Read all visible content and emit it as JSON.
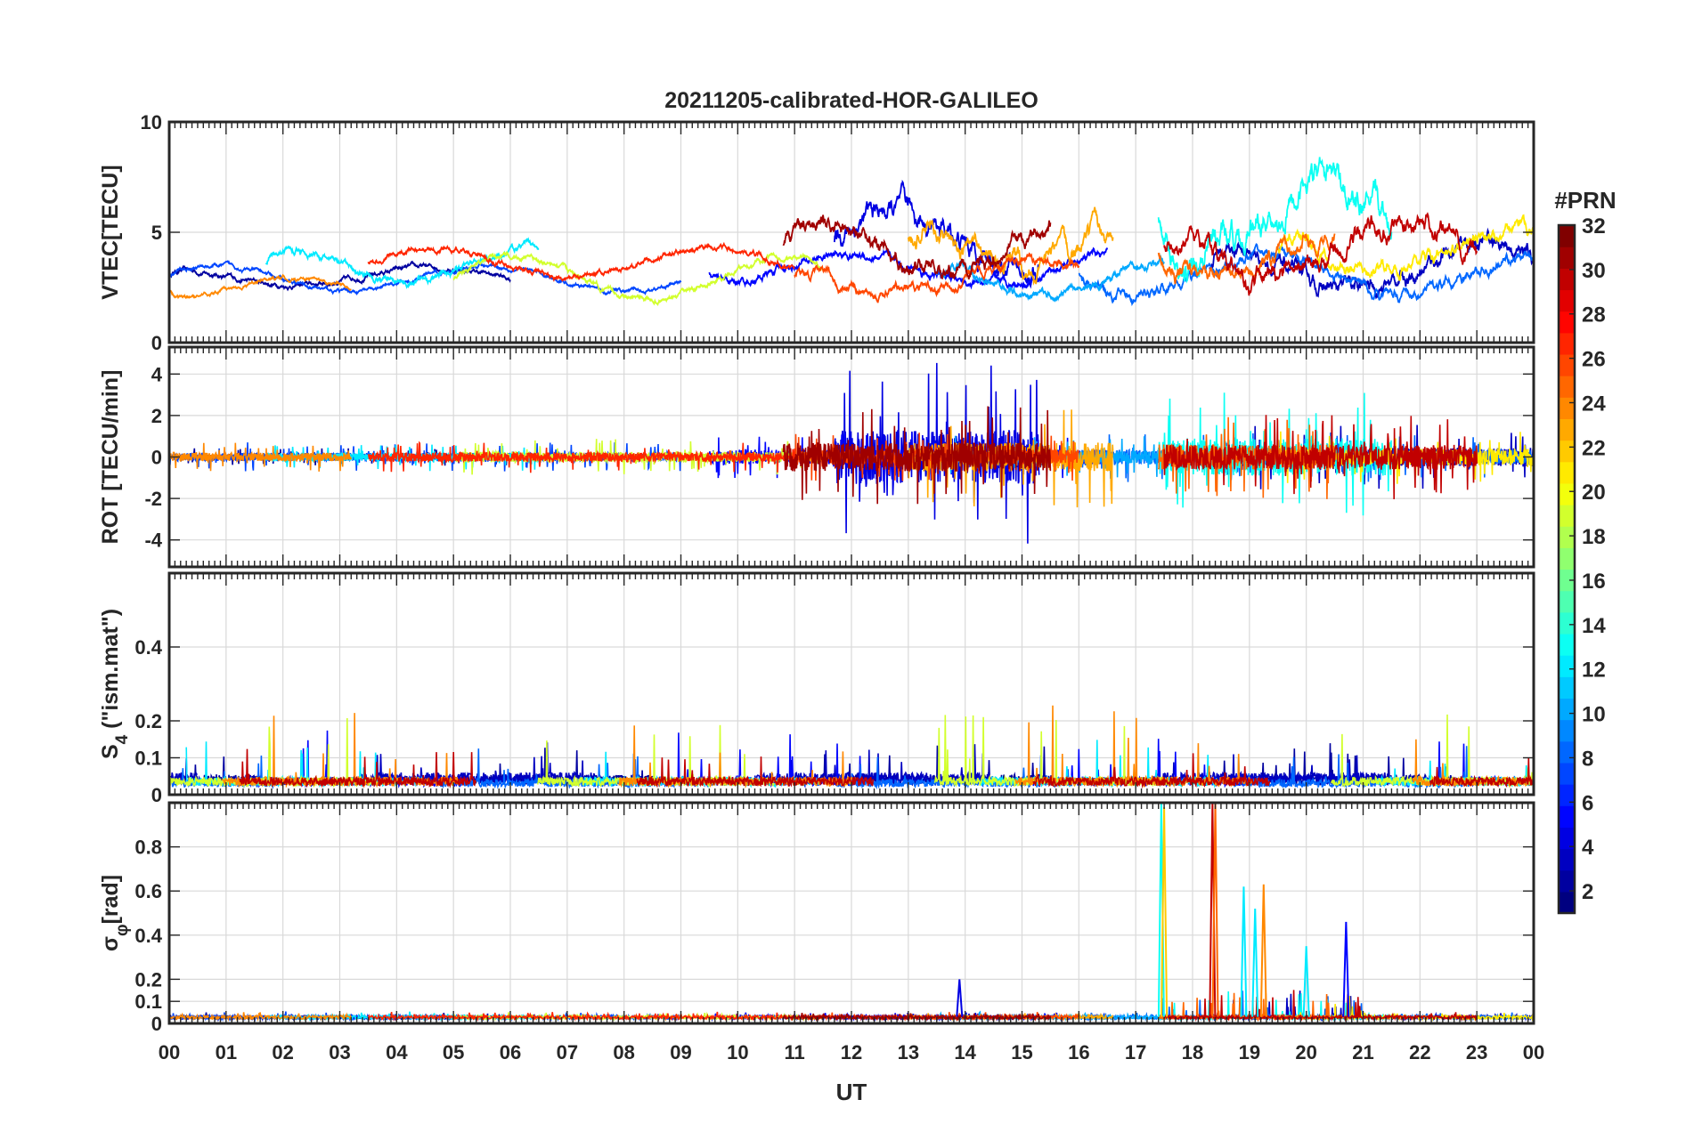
{
  "chart_data": {
    "type": "line",
    "title": "20211205-calibrated-HOR-GALILEO",
    "xlabel": "UT",
    "x_ticks": [
      "00",
      "01",
      "02",
      "03",
      "04",
      "05",
      "06",
      "07",
      "08",
      "09",
      "10",
      "11",
      "12",
      "13",
      "14",
      "15",
      "16",
      "17",
      "18",
      "19",
      "20",
      "21",
      "22",
      "23",
      "00"
    ],
    "xlim": [
      0,
      24
    ],
    "grid": true,
    "colorbar": {
      "label": "#PRN",
      "colormap": "jet",
      "range": [
        1,
        32
      ],
      "ticks": [
        "2",
        "4",
        "6",
        "8",
        "10",
        "12",
        "14",
        "16",
        "18",
        "20",
        "22",
        "24",
        "26",
        "28",
        "30",
        "32"
      ]
    },
    "panels": [
      {
        "ylabel": "VTEC[TECU]",
        "ylim": [
          0,
          10
        ],
        "yticks": [
          0,
          5,
          10
        ],
        "ytick_labels": [
          "0",
          "5",
          "10"
        ],
        "series": [
          {
            "name": "PRN 2",
            "prn": 2,
            "start": 0.0,
            "end": 6.0,
            "base": 3.0,
            "amp": 0.4,
            "noise": 0.18,
            "rot": 0.12
          },
          {
            "name": "PRN 3",
            "prn": 3,
            "start": 18.3,
            "end": 24.0,
            "base": 3.4,
            "amp": 1.1,
            "noise": 0.6,
            "rot": 0.45
          },
          {
            "name": "PRN 4",
            "prn": 4,
            "start": 11.7,
            "end": 15.3,
            "base": 4.6,
            "amp": 1.3,
            "noise": 0.8,
            "rot": 1.3
          },
          {
            "name": "PRN 5",
            "prn": 5,
            "start": 9.5,
            "end": 16.5,
            "base": 3.3,
            "amp": 0.7,
            "noise": 0.3,
            "rot": 0.35
          },
          {
            "name": "PRN 7",
            "prn": 7,
            "start": 0.0,
            "end": 9.0,
            "base": 2.9,
            "amp": 0.6,
            "noise": 0.15,
            "rot": 0.2
          },
          {
            "name": "PRN 8",
            "prn": 8,
            "start": 16.0,
            "end": 24.0,
            "base": 3.1,
            "amp": 0.9,
            "noise": 0.4,
            "rot": 0.35
          },
          {
            "name": "PRN 10",
            "prn": 10,
            "start": 13.5,
            "end": 17.5,
            "base": 3.0,
            "amp": 0.8,
            "noise": 0.3,
            "rot": 0.3
          },
          {
            "name": "PRN 12",
            "prn": 12,
            "start": 1.7,
            "end": 6.5,
            "base": 3.6,
            "amp": 0.8,
            "noise": 0.25,
            "rot": 0.2
          },
          {
            "name": "PRN 13",
            "prn": 13,
            "start": 17.4,
            "end": 21.5,
            "base": 5.5,
            "amp": 1.8,
            "noise": 1.0,
            "rot": 0.9
          },
          {
            "name": "PRN 19",
            "prn": 19,
            "start": 5.0,
            "end": 11.5,
            "base": 2.9,
            "amp": 1.0,
            "noise": 0.2,
            "rot": 0.25
          },
          {
            "name": "PRN 21",
            "prn": 21,
            "start": 19.5,
            "end": 24.0,
            "base": 4.2,
            "amp": 0.9,
            "noise": 0.5,
            "rot": 0.4
          },
          {
            "name": "PRN 23",
            "prn": 23,
            "start": 13.0,
            "end": 16.6,
            "base": 4.6,
            "amp": 1.2,
            "noise": 0.7,
            "rot": 0.7
          },
          {
            "name": "PRN 24",
            "prn": 24,
            "start": 0.0,
            "end": 3.2,
            "base": 2.4,
            "amp": 0.5,
            "noise": 0.15,
            "rot": 0.2
          },
          {
            "name": "PRN 25",
            "prn": 25,
            "start": 17.4,
            "end": 20.5,
            "base": 4.0,
            "amp": 1.0,
            "noise": 0.6,
            "rot": 0.6
          },
          {
            "name": "PRN 26",
            "prn": 26,
            "start": 11.0,
            "end": 16.0,
            "base": 3.0,
            "amp": 0.7,
            "noise": 0.35,
            "rot": 0.35
          },
          {
            "name": "PRN 27",
            "prn": 27,
            "start": 3.5,
            "end": 11.0,
            "base": 3.6,
            "amp": 0.7,
            "noise": 0.2,
            "rot": 0.22
          },
          {
            "name": "PRN 30",
            "prn": 30,
            "start": 17.5,
            "end": 23.0,
            "base": 4.2,
            "amp": 1.3,
            "noise": 0.7,
            "rot": 0.6
          },
          {
            "name": "PRN 31",
            "prn": 31,
            "start": 10.8,
            "end": 15.5,
            "base": 4.4,
            "amp": 1.1,
            "noise": 0.6,
            "rot": 0.7
          }
        ]
      },
      {
        "ylabel": "ROT [TECU/min]",
        "ylim": [
          -5.3,
          5.3
        ],
        "yticks": [
          -4,
          -2,
          0,
          2,
          4
        ],
        "ytick_labels": [
          "-4",
          "-2",
          "0",
          "2",
          "4"
        ]
      },
      {
        "ylabel": "S4 (\"ism.mat\")",
        "ylabel_main": "S",
        "ylabel_sub": "4",
        "ylabel_rest": " (\"ism.mat\")",
        "ylim": [
          0,
          0.6
        ],
        "yticks": [
          0,
          0.1,
          0.2,
          0.4
        ],
        "ytick_labels": [
          "0",
          "0.1",
          "0.2",
          "0.4"
        ],
        "series_levels": [
          {
            "prn": 2,
            "level": 0.045,
            "spike": 0.1
          },
          {
            "prn": 3,
            "level": 0.05,
            "spike": 0.09
          },
          {
            "prn": 5,
            "level": 0.04,
            "spike": 0.13
          },
          {
            "prn": 8,
            "level": 0.035,
            "spike": 0.1
          },
          {
            "prn": 12,
            "level": 0.04,
            "spike": 0.12
          },
          {
            "prn": 19,
            "level": 0.04,
            "spike": 0.22
          },
          {
            "prn": 24,
            "level": 0.04,
            "spike": 0.2
          },
          {
            "prn": 30,
            "level": 0.04,
            "spike": 0.09
          }
        ]
      },
      {
        "ylabel": "σφ[rad]",
        "ylabel_main": "σ",
        "ylabel_sub": "φ",
        "ylabel_rest": "[rad]",
        "ylim": [
          0,
          1.0
        ],
        "yticks": [
          0,
          0.1,
          0.2,
          0.4,
          0.6,
          0.8
        ],
        "ytick_labels": [
          "0",
          "0.1",
          "0.2",
          "0.4",
          "0.6",
          "0.8"
        ],
        "spikes": [
          {
            "x": 17.45,
            "y": 1.0,
            "prn": 13
          },
          {
            "x": 17.5,
            "y": 0.98,
            "prn": 22
          },
          {
            "x": 18.35,
            "y": 1.0,
            "prn": 30
          },
          {
            "x": 18.4,
            "y": 1.0,
            "prn": 25
          },
          {
            "x": 18.9,
            "y": 0.62,
            "prn": 12
          },
          {
            "x": 19.1,
            "y": 0.52,
            "prn": 12
          },
          {
            "x": 19.25,
            "y": 0.63,
            "prn": 24
          },
          {
            "x": 20.7,
            "y": 0.46,
            "prn": 5
          },
          {
            "x": 20.0,
            "y": 0.35,
            "prn": 12
          },
          {
            "x": 13.9,
            "y": 0.2,
            "prn": 4
          }
        ]
      }
    ]
  }
}
